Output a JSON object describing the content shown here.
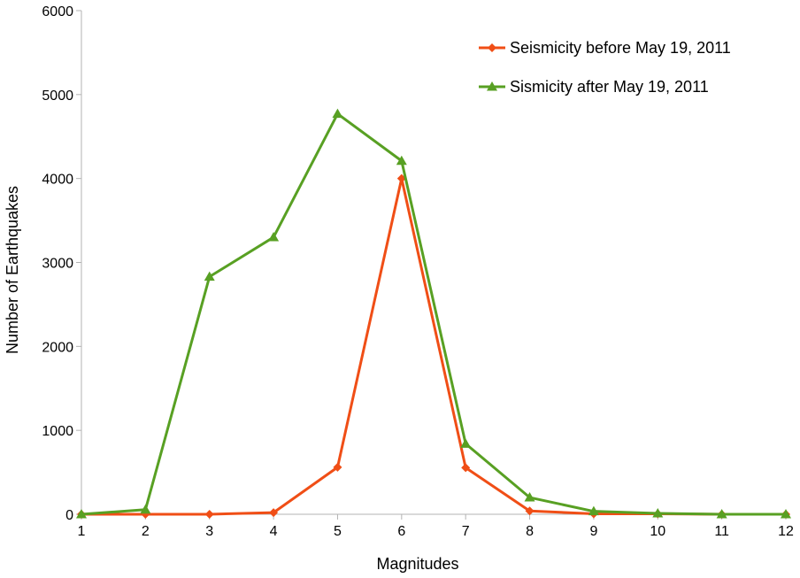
{
  "chart_data": {
    "type": "line",
    "title": "",
    "xlabel": "Magnitudes",
    "ylabel": "Number of Earthquakes",
    "categories": [
      "1",
      "2",
      "3",
      "4",
      "5",
      "6",
      "7",
      "8",
      "9",
      "10",
      "11",
      "12"
    ],
    "ylim": [
      0,
      6000
    ],
    "yticks": [
      0,
      1000,
      2000,
      3000,
      4000,
      5000,
      6000
    ],
    "grid": false,
    "legend_position": "top-right",
    "series": [
      {
        "name": "Seismicity before May 19, 2011",
        "color": "#f04e16",
        "marker": "diamond",
        "values": [
          0,
          0,
          0,
          20,
          560,
          4000,
          555,
          40,
          5,
          5,
          0,
          0
        ]
      },
      {
        "name": "Sismicity after May 19, 2011",
        "color": "#58a023",
        "marker": "triangle",
        "values": [
          0,
          55,
          2830,
          3300,
          4770,
          4210,
          840,
          200,
          35,
          10,
          0,
          0
        ]
      }
    ]
  }
}
